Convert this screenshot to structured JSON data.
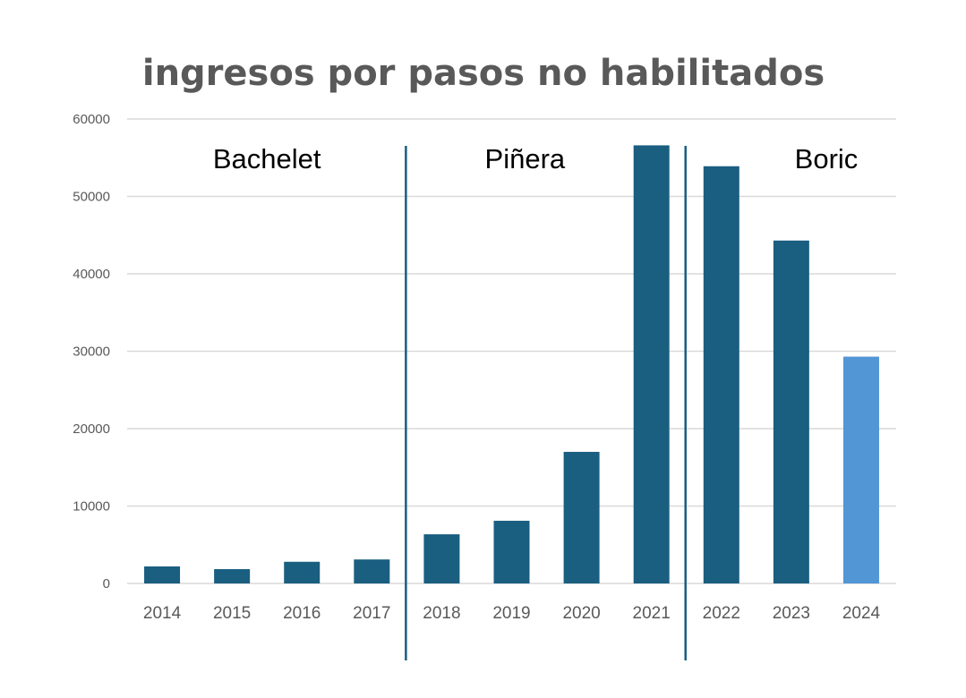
{
  "chart_data": {
    "type": "bar",
    "title": "ingresos por pasos no habilitados",
    "xlabel": "",
    "ylabel": "",
    "categories": [
      "2014",
      "2015",
      "2016",
      "2017",
      "2018",
      "2019",
      "2020",
      "2021",
      "2022",
      "2023",
      "2024"
    ],
    "values": [
      2200,
      1850,
      2800,
      3100,
      6350,
      8100,
      17000,
      56600,
      53900,
      44300,
      29300
    ],
    "ylim": [
      0,
      60000
    ],
    "yticks": [
      "0",
      "10000",
      "20000",
      "30000",
      "40000",
      "50000",
      "60000"
    ],
    "grid": true,
    "colors": {
      "main": "#1a5e80",
      "highlight": "#5296d5",
      "divider": "#1a5e80",
      "grid": "#d9d9d9"
    },
    "highlight_index": 10,
    "periods": [
      {
        "label": "Bachelet",
        "from": "2014",
        "to": "2017"
      },
      {
        "label": "Piñera",
        "from": "2018",
        "to": "2021"
      },
      {
        "label": "Boric",
        "from": "2022",
        "to": "2024"
      }
    ]
  }
}
